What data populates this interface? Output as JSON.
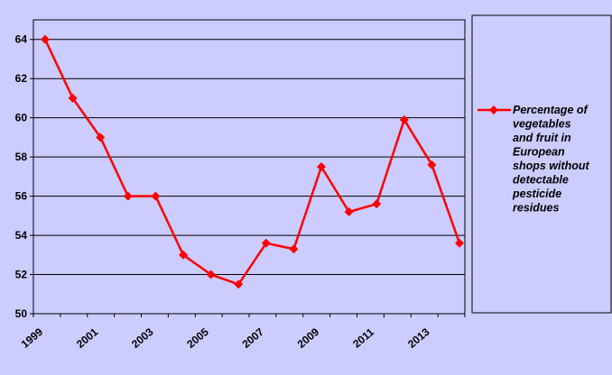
{
  "chart_data": {
    "type": "line",
    "title": "",
    "xlabel": "",
    "ylabel": "",
    "x": [
      1999,
      2000,
      2001,
      2002,
      2003,
      2004,
      2005,
      2006,
      2007,
      2008,
      2009,
      2010,
      2011,
      2012,
      2013,
      2014
    ],
    "x_tick_labels": [
      "1999",
      "2001",
      "2003",
      "2005",
      "2007",
      "2009",
      "2011",
      "2013"
    ],
    "ylim": [
      50,
      65
    ],
    "y_ticks": [
      50,
      52,
      54,
      56,
      58,
      60,
      62,
      64
    ],
    "grid": true,
    "legend_position": "right",
    "series": [
      {
        "name": "Percentage of vegetables and fruit in European shops without detectable pesticide residues",
        "name_lines": [
          "Percentage of",
          "vegetables",
          "and fruit in",
          "European",
          "shops without",
          "detectable",
          "pesticide",
          "residues"
        ],
        "color": "#ff0000",
        "marker": "diamond",
        "values": [
          64.0,
          61.0,
          59.0,
          56.0,
          56.0,
          53.0,
          52.0,
          51.5,
          53.6,
          53.3,
          57.5,
          55.2,
          55.6,
          59.9,
          57.6,
          53.6
        ]
      }
    ]
  },
  "colors": {
    "background": "#ccccff",
    "plot_area": "#ccccff",
    "series": "#ff0000",
    "grid": "#000000"
  }
}
